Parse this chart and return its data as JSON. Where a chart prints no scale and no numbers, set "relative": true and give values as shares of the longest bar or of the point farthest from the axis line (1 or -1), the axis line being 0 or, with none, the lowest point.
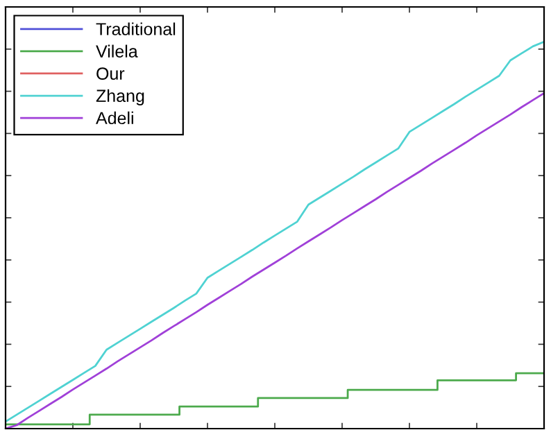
{
  "chart_data": {
    "type": "line",
    "relative": true,
    "legend": "top left",
    "grid": false,
    "marker": "none",
    "line_style": "solid",
    "categories": [
      null,
      null,
      null,
      null,
      null,
      null,
      null,
      null,
      null,
      null,
      null,
      null,
      null,
      null,
      null,
      null,
      null,
      null,
      null,
      null,
      null,
      null,
      null,
      null,
      null,
      null,
      null,
      null,
      null,
      null,
      null,
      null,
      null,
      null,
      null,
      null,
      null,
      null,
      null,
      null,
      null,
      null,
      null,
      null,
      null,
      null,
      null,
      null,
      null
    ],
    "series": [
      {
        "name": "Traditional",
        "color": "#5050d8",
        "values": [
          null,
          null,
          null,
          null,
          null,
          null,
          null,
          null,
          null,
          null,
          null,
          null,
          null,
          null,
          null,
          null,
          null,
          null,
          null,
          null,
          null,
          null,
          null,
          null,
          null,
          null,
          null,
          null,
          null,
          null,
          null,
          null,
          null,
          null,
          null,
          null,
          null,
          null,
          null,
          null,
          null,
          null,
          null,
          null,
          null,
          null,
          null,
          null,
          null
        ]
      },
      {
        "name": "Vilela",
        "type": "step",
        "color": "#4caa4c",
        "values": [
          0.011,
          0.011,
          0.011,
          0.011,
          0.011,
          0.011,
          0.011,
          0.011,
          0.036,
          0.036,
          0.036,
          0.036,
          0.036,
          0.036,
          0.036,
          0.036,
          0.057,
          0.057,
          0.057,
          0.057,
          0.057,
          0.057,
          0.057,
          0.079,
          0.079,
          0.079,
          0.079,
          0.079,
          0.079,
          0.079,
          0.079,
          0.1,
          0.1,
          0.1,
          0.1,
          0.1,
          0.1,
          0.1,
          0.1,
          0.125,
          0.125,
          0.125,
          0.125,
          0.125,
          0.125,
          0.125,
          0.143,
          0.143,
          0.143
        ]
      },
      {
        "name": "Our",
        "color": "#e06060",
        "values": [
          null,
          null,
          null,
          null,
          null,
          null,
          null,
          null,
          null,
          null,
          null,
          null,
          null,
          null,
          null,
          null,
          null,
          null,
          null,
          null,
          null,
          null,
          null,
          null,
          null,
          null,
          null,
          null,
          null,
          null,
          null,
          null,
          null,
          null,
          null,
          null,
          null,
          null,
          null,
          null,
          null,
          null,
          null,
          null,
          null,
          null,
          null,
          null,
          null
        ]
      },
      {
        "name": "Zhang",
        "color": "#4fd2d2",
        "values": [
          0.018,
          0.036,
          0.054,
          0.072,
          0.09,
          0.108,
          0.126,
          0.144,
          0.162,
          0.204,
          0.222,
          0.24,
          0.258,
          0.276,
          0.294,
          0.312,
          0.331,
          0.349,
          0.39,
          0.408,
          0.426,
          0.444,
          0.462,
          0.481,
          0.499,
          0.517,
          0.535,
          0.579,
          0.597,
          0.615,
          0.633,
          0.651,
          0.67,
          0.688,
          0.706,
          0.724,
          0.767,
          0.785,
          0.803,
          0.821,
          0.839,
          0.858,
          0.876,
          0.894,
          0.912,
          0.952,
          0.97,
          0.988,
          1.0
        ]
      },
      {
        "name": "Adeli",
        "color": "#a040d8",
        "values": [
          0,
          0.009,
          0.028,
          0.046,
          0.064,
          0.082,
          0.101,
          0.119,
          0.137,
          0.155,
          0.174,
          0.192,
          0.21,
          0.228,
          0.247,
          0.265,
          0.283,
          0.301,
          0.32,
          0.338,
          0.356,
          0.374,
          0.393,
          0.411,
          0.429,
          0.447,
          0.466,
          0.484,
          0.502,
          0.52,
          0.539,
          0.557,
          0.575,
          0.593,
          0.612,
          0.63,
          0.648,
          0.666,
          0.685,
          0.703,
          0.721,
          0.739,
          0.758,
          0.776,
          0.794,
          0.812,
          0.831,
          0.849,
          0.867
        ]
      }
    ]
  }
}
